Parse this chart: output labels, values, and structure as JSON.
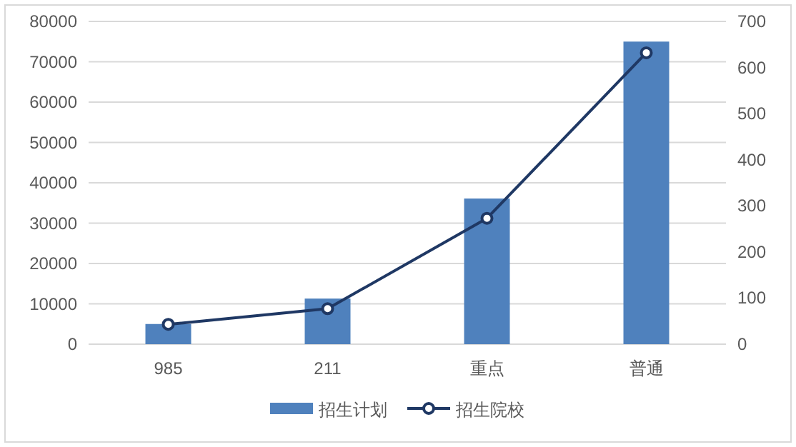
{
  "chart_data": {
    "type": "bar",
    "categories": [
      "985",
      "211",
      "重点",
      "普通"
    ],
    "series": [
      {
        "name": "招生计划",
        "color": "#4f81bd",
        "values": [
          5000,
          11300,
          36100,
          75000
        ]
      },
      {
        "name": "招生院校",
        "type": "line",
        "axis": "y2",
        "color": "#1f3864",
        "marker": "circle",
        "values": [
          43,
          77,
          273,
          632
        ]
      }
    ],
    "ylim": [
      0,
      80000
    ],
    "yticks": [
      0,
      10000,
      20000,
      30000,
      40000,
      50000,
      60000,
      70000,
      80000
    ],
    "y2lim": [
      0,
      700
    ],
    "y2ticks": [
      0,
      100,
      200,
      300,
      400,
      500,
      600,
      700
    ],
    "grid": "y",
    "legend": "bottom"
  }
}
